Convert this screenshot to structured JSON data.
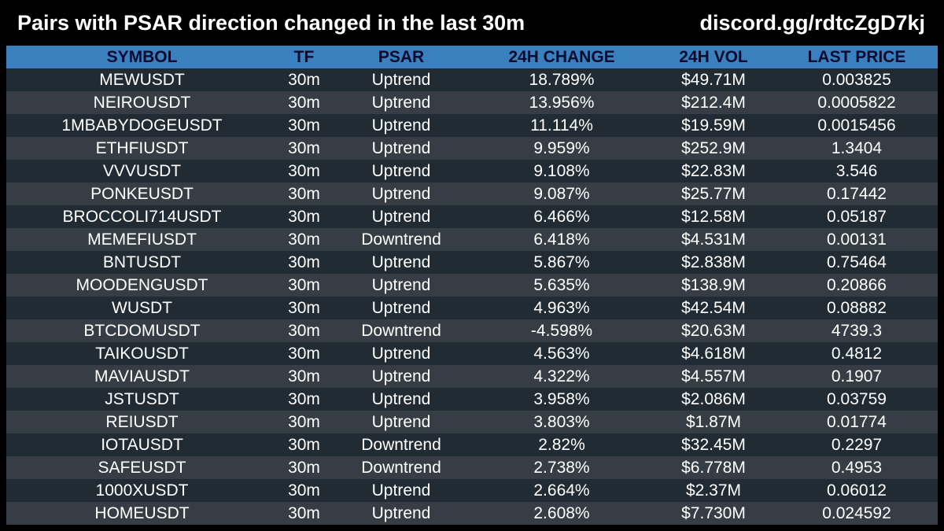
{
  "header": {
    "title": "Pairs with PSAR direction changed in the last 30m",
    "invite": "discord.gg/rdtcZgD7kj"
  },
  "table": {
    "columns": [
      "SYMBOL",
      "TF",
      "PSAR",
      "24H CHANGE",
      "24H VOL",
      "LAST PRICE"
    ],
    "rows": [
      [
        "MEWUSDT",
        "30m",
        "Uptrend",
        "18.789%",
        "$49.71M",
        "0.003825"
      ],
      [
        "NEIROUSDT",
        "30m",
        "Uptrend",
        "13.956%",
        "$212.4M",
        "0.0005822"
      ],
      [
        "1MBABYDOGEUSDT",
        "30m",
        "Uptrend",
        "11.114%",
        "$19.59M",
        "0.0015456"
      ],
      [
        "ETHFIUSDT",
        "30m",
        "Uptrend",
        "9.959%",
        "$252.9M",
        "1.3404"
      ],
      [
        "VVVUSDT",
        "30m",
        "Uptrend",
        "9.108%",
        "$22.83M",
        "3.546"
      ],
      [
        "PONKEUSDT",
        "30m",
        "Uptrend",
        "9.087%",
        "$25.77M",
        "0.17442"
      ],
      [
        "BROCCOLI714USDT",
        "30m",
        "Uptrend",
        "6.466%",
        "$12.58M",
        "0.05187"
      ],
      [
        "MEMEFIUSDT",
        "30m",
        "Downtrend",
        "6.418%",
        "$4.531M",
        "0.00131"
      ],
      [
        "BNTUSDT",
        "30m",
        "Uptrend",
        "5.867%",
        "$2.838M",
        "0.75464"
      ],
      [
        "MOODENGUSDT",
        "30m",
        "Uptrend",
        "5.635%",
        "$138.9M",
        "0.20866"
      ],
      [
        "WUSDT",
        "30m",
        "Uptrend",
        "4.963%",
        "$42.54M",
        "0.08882"
      ],
      [
        "BTCDOMUSDT",
        "30m",
        "Downtrend",
        "-4.598%",
        "$20.63M",
        "4739.3"
      ],
      [
        "TAIKOUSDT",
        "30m",
        "Uptrend",
        "4.563%",
        "$4.618M",
        "0.4812"
      ],
      [
        "MAVIAUSDT",
        "30m",
        "Uptrend",
        "4.322%",
        "$4.557M",
        "0.1907"
      ],
      [
        "JSTUSDT",
        "30m",
        "Uptrend",
        "3.958%",
        "$2.086M",
        "0.03759"
      ],
      [
        "REIUSDT",
        "30m",
        "Uptrend",
        "3.803%",
        "$1.87M",
        "0.01774"
      ],
      [
        "IOTAUSDT",
        "30m",
        "Downtrend",
        "2.82%",
        "$32.45M",
        "0.2297"
      ],
      [
        "SAFEUSDT",
        "30m",
        "Downtrend",
        "2.738%",
        "$6.778M",
        "0.4953"
      ],
      [
        "1000XUSDT",
        "30m",
        "Uptrend",
        "2.664%",
        "$2.37M",
        "0.06012"
      ],
      [
        "HOMEUSDT",
        "30m",
        "Uptrend",
        "2.608%",
        "$7.730M",
        "0.024592"
      ]
    ]
  },
  "colors": {
    "background": "#000000",
    "header_row": "#3a80be",
    "header_text": "#0b0b2e",
    "row_dark": "#202b33",
    "row_light": "#363d44",
    "text": "#ffffff"
  }
}
